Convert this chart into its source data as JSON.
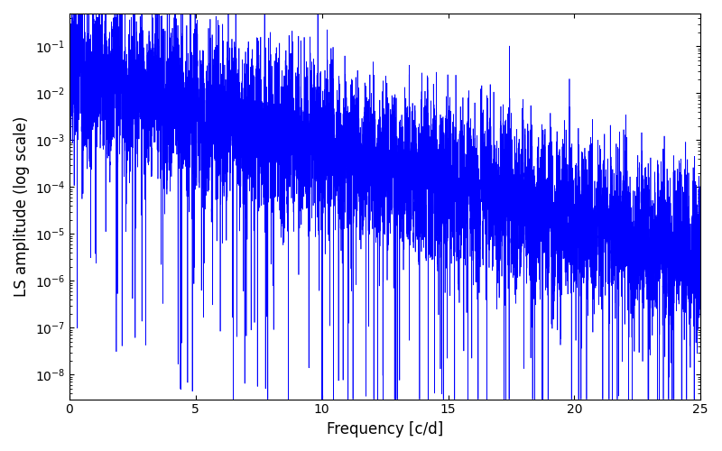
{
  "xlabel": "Frequency [c/d]",
  "ylabel": "LS amplitude (log scale)",
  "xlim": [
    0,
    25
  ],
  "ylim": [
    3e-09,
    0.5
  ],
  "line_color": "#0000ff",
  "line_width": 0.5,
  "background_color": "#ffffff",
  "n_points": 20000,
  "seed": 42,
  "freq_max": 25.0
}
